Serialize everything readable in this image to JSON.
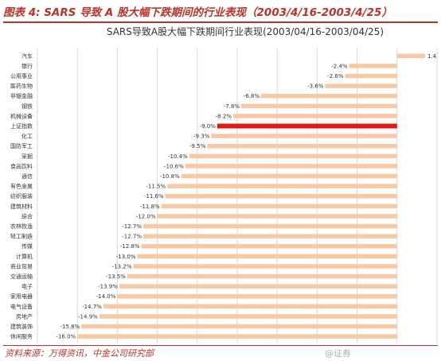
{
  "figure_title": "图表 4: SARS 导致 A 股大幅下跌期间的行业表现（2003/4/16-2003/4/25）",
  "source_note": "资料来源：万得资讯，中金公司研究部",
  "watermark": "@证券",
  "colors": {
    "accent": "#b8332a",
    "bar": "#f8c9a3",
    "highlight_bar": "#e11a14",
    "grid": "#d9d9d9"
  },
  "chart_data": {
    "type": "bar",
    "orientation": "horizontal",
    "title": "SARS导致A股大幅下跌期间行业表现(2003/04/16-2003/04/25)",
    "xlabel": "",
    "ylabel": "",
    "xlim": [
      -18,
      2
    ],
    "x_ticks": [
      -18,
      -16,
      -14,
      -12,
      -10,
      -8,
      -6,
      -4,
      -2,
      0,
      2
    ],
    "x_tick_labels": [
      "-18.0%",
      "-16.0%",
      "-14.0%",
      "-12.0%",
      "-10.0%",
      "-8.0%",
      "-6.0%",
      "-4.0%",
      "-2.0%",
      "0.0%",
      "2.0"
    ],
    "grid": "vertical",
    "legend": "none",
    "highlight_category": "上证指数",
    "categories": [
      "汽车",
      "银行",
      "公用事业",
      "医药生物",
      "非银金融",
      "钢铁",
      "机械设备",
      "上证指数",
      "化工",
      "国防军工",
      "采掘",
      "食品饮料",
      "通信",
      "有色金属",
      "纺织服装",
      "建筑材料",
      "综合",
      "农林牧渔",
      "轻工制造",
      "传媒",
      "计算机",
      "商业贸易",
      "交通运输",
      "电子",
      "家用电器",
      "电气设备",
      "房地产",
      "建筑装饰",
      "休闲服务"
    ],
    "values": [
      1.4,
      -2.4,
      -2.6,
      -3.6,
      -6.8,
      -7.8,
      -8.2,
      -9.0,
      -9.3,
      -9.5,
      -10.4,
      -10.6,
      -10.8,
      -11.5,
      -11.6,
      -11.8,
      -12.0,
      -12.7,
      -12.7,
      -12.8,
      -13.0,
      -13.2,
      -13.5,
      -13.9,
      -14.0,
      -14.7,
      -14.9,
      -15.8,
      -16.0
    ],
    "value_labels": [
      "1.4",
      "-2.4%",
      "-2.6%",
      "-3.6%",
      "-6.8%",
      "-7.8%",
      "-8.2%",
      "-9.0%",
      "-9.3%",
      "-9.5%",
      "-10.4%",
      "-10.6%",
      "-10.8%",
      "-11.5%",
      "-11.6%",
      "-11.8%",
      "-12.0%",
      "-12.7%",
      "-12.7%",
      "-12.8%",
      "-13.0%",
      "-13.2%",
      "-13.5%",
      "-13.9%",
      "-14.0%",
      "-14.7%",
      "-14.9%",
      "-15.8%",
      "-16.0%"
    ]
  }
}
